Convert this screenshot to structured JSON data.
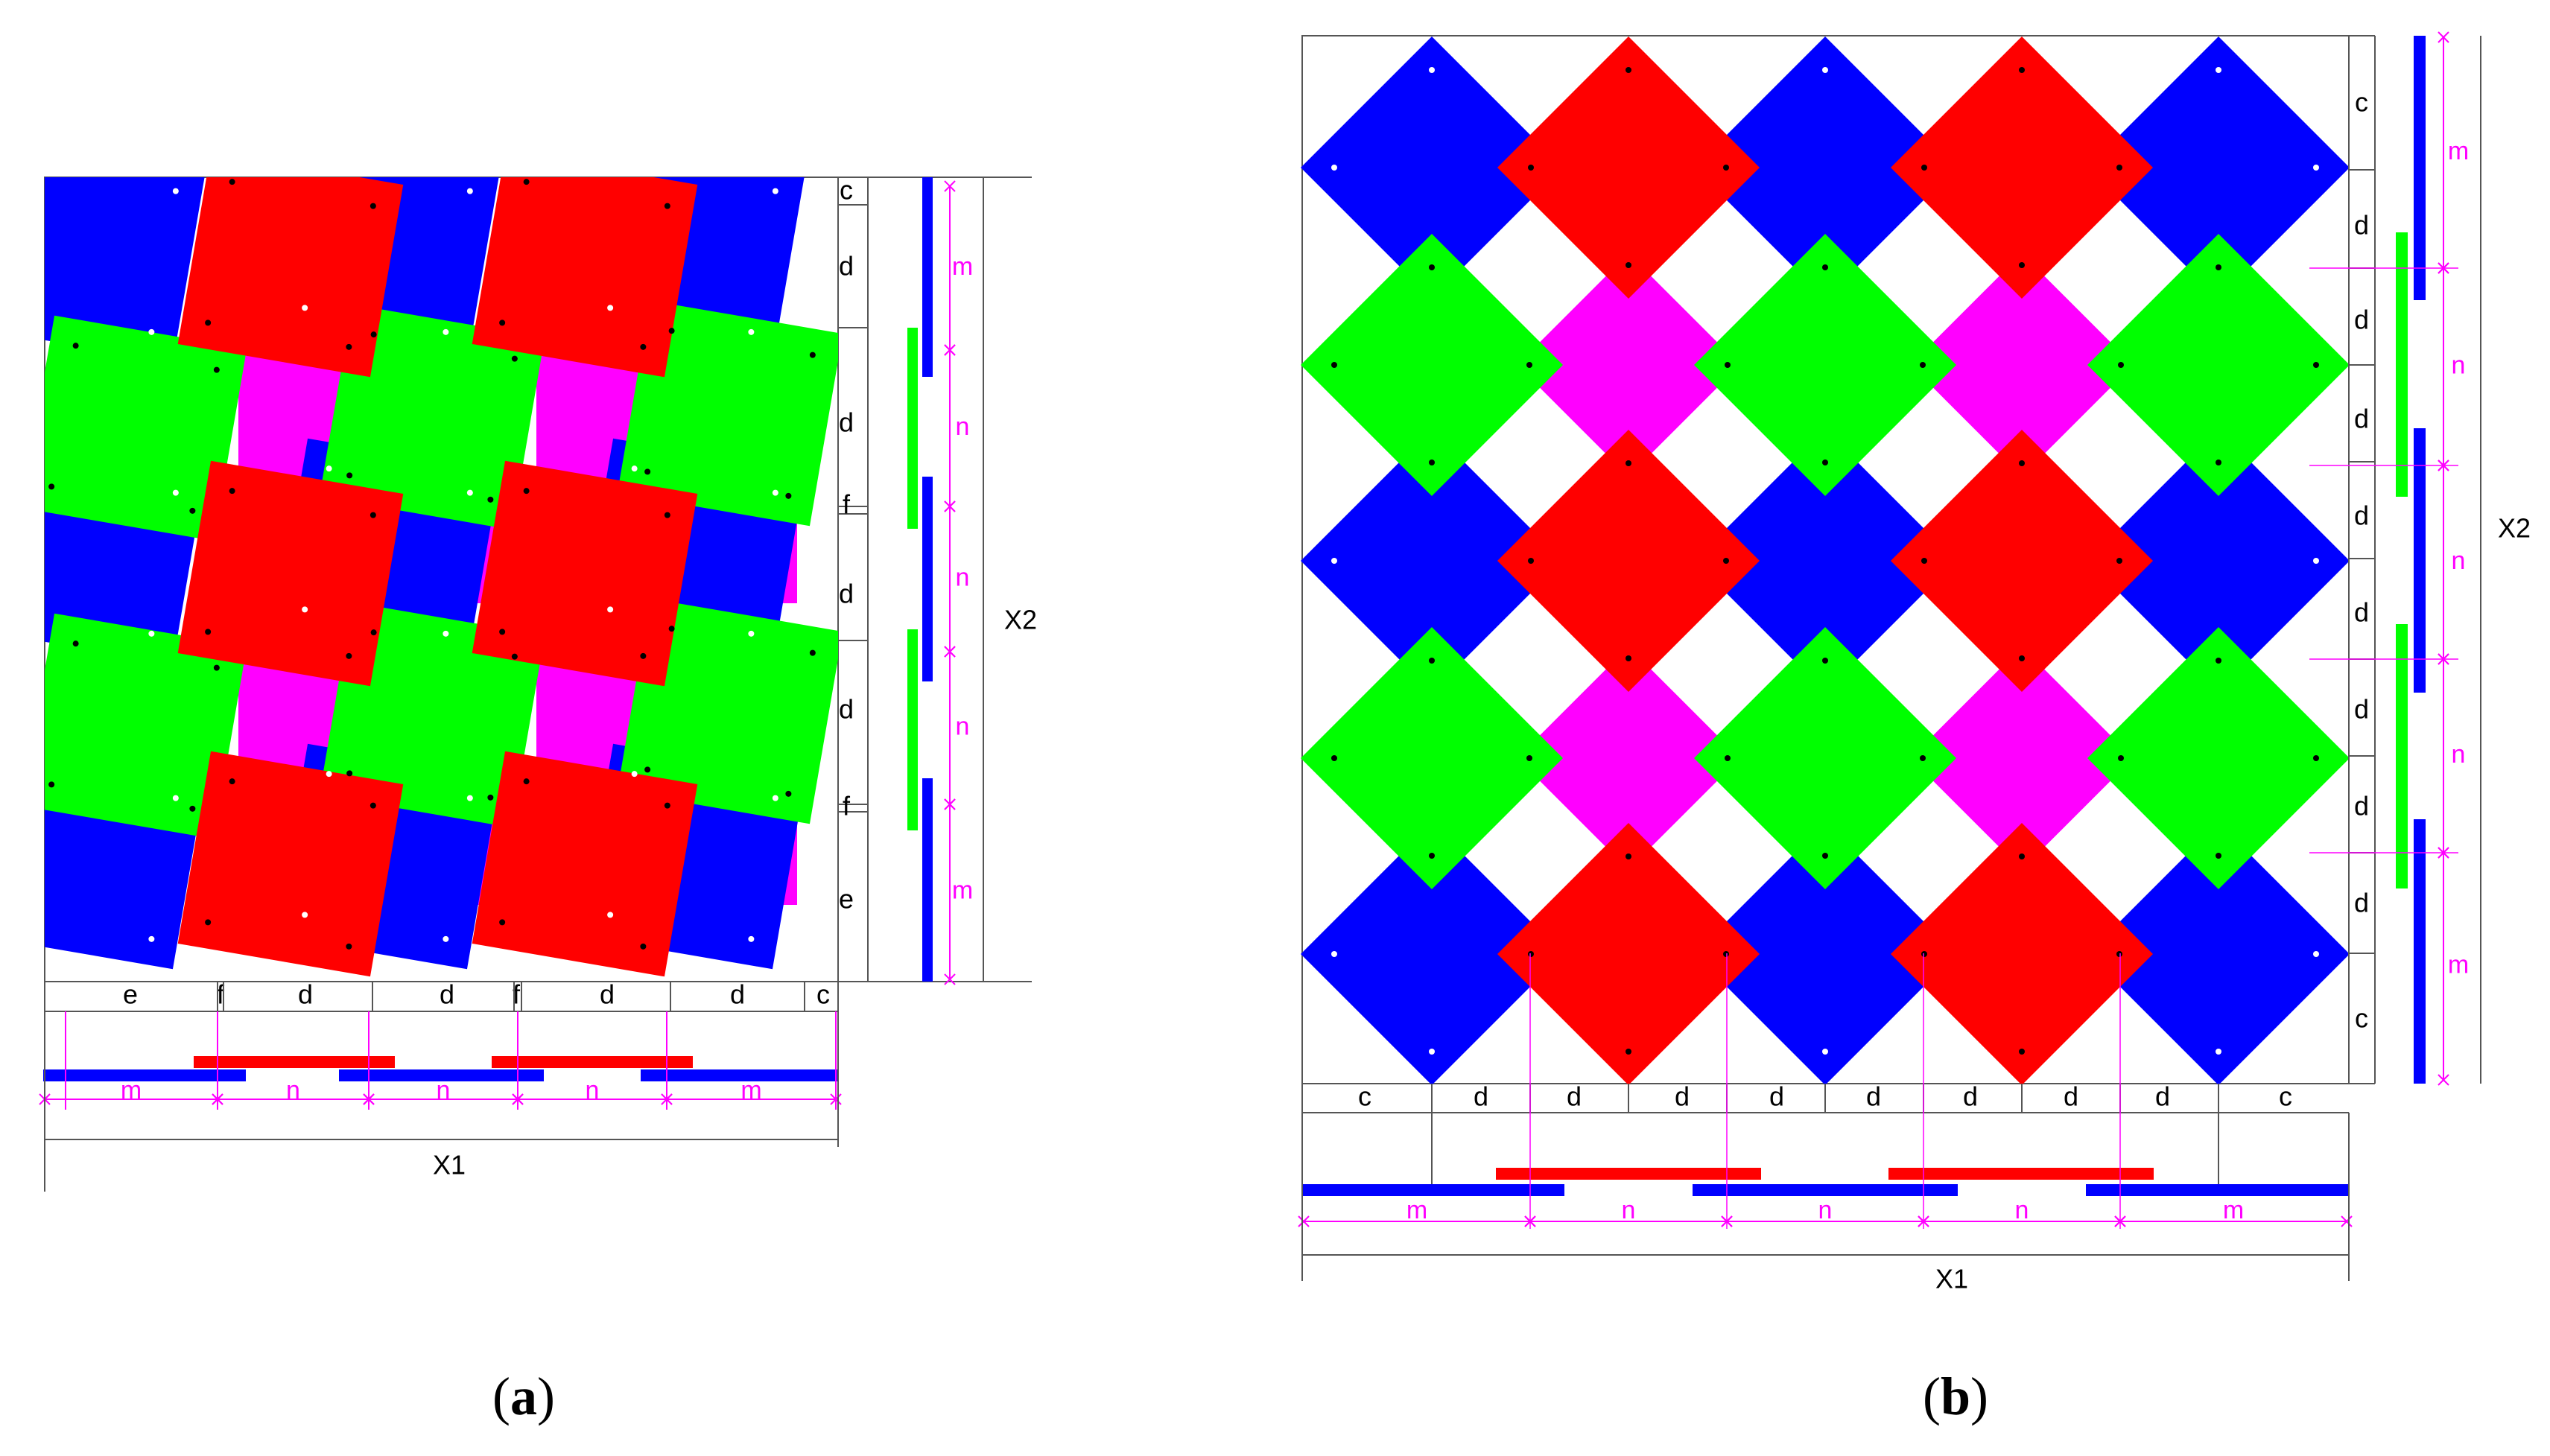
{
  "colors": {
    "blue": "#0000ff",
    "red": "#ff0000",
    "green": "#00ff00",
    "magenta": "#ff00ff",
    "dim": "#ff00ff",
    "line": "#555555"
  },
  "panel_a": {
    "caption_open": "(",
    "caption_letter": "a",
    "caption_close": ")",
    "x_label": "X1",
    "y_label": "X2",
    "bottom_labels": [
      "e",
      "f",
      "d",
      "d",
      "f",
      "d",
      "d",
      "c"
    ],
    "bottom_dims": [
      "m",
      "n",
      "n",
      "n",
      "m"
    ],
    "right_labels": [
      "c",
      "d",
      "d",
      "f",
      "d",
      "d",
      "f",
      "e"
    ],
    "right_dims": [
      "m",
      "n",
      "n",
      "n",
      "m"
    ]
  },
  "panel_b": {
    "caption_open": "(",
    "caption_letter": "b",
    "caption_close": ")",
    "x_label": "X1",
    "y_label": "X2",
    "bottom_labels": [
      "c",
      "d",
      "d",
      "d",
      "d",
      "d",
      "d",
      "d",
      "d",
      "c"
    ],
    "bottom_dims": [
      "m",
      "n",
      "n",
      "n",
      "m"
    ],
    "right_labels": [
      "c",
      "d",
      "d",
      "d",
      "d",
      "d",
      "d",
      "d",
      "d",
      "c"
    ],
    "right_dims": [
      "m",
      "n",
      "n",
      "n",
      "m"
    ]
  }
}
